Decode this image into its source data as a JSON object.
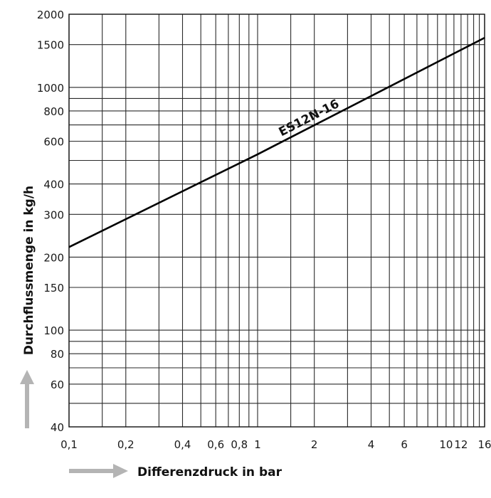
{
  "chart_data": {
    "type": "line",
    "x_scale": "log",
    "y_scale": "log",
    "xlabel": "Differenzdruck in bar",
    "ylabel": "Durchflussmenge in kg/h",
    "xlim": [
      0.1,
      16
    ],
    "ylim": [
      40,
      2000
    ],
    "x_ticks": [
      {
        "value": 0.1,
        "label": "0,1"
      },
      {
        "value": 0.2,
        "label": "0,2"
      },
      {
        "value": 0.4,
        "label": "0,4"
      },
      {
        "value": 0.6,
        "label": "0,6"
      },
      {
        "value": 0.8,
        "label": "0,8"
      },
      {
        "value": 1,
        "label": "1"
      },
      {
        "value": 2,
        "label": "2"
      },
      {
        "value": 4,
        "label": "4"
      },
      {
        "value": 6,
        "label": "6"
      },
      {
        "value": 10,
        "label": "10"
      },
      {
        "value": 12,
        "label": "12"
      },
      {
        "value": 16,
        "label": "16"
      }
    ],
    "y_ticks": [
      {
        "value": 40,
        "label": "40"
      },
      {
        "value": 60,
        "label": "60"
      },
      {
        "value": 80,
        "label": "80"
      },
      {
        "value": 100,
        "label": "100"
      },
      {
        "value": 150,
        "label": "150"
      },
      {
        "value": 200,
        "label": "200"
      },
      {
        "value": 300,
        "label": "300"
      },
      {
        "value": 400,
        "label": "400"
      },
      {
        "value": 600,
        "label": "600"
      },
      {
        "value": 800,
        "label": "800"
      },
      {
        "value": 1000,
        "label": "1000"
      },
      {
        "value": 1500,
        "label": "1500"
      },
      {
        "value": 2000,
        "label": "2000"
      }
    ],
    "x_grid": [
      0.1,
      0.15,
      0.2,
      0.3,
      0.4,
      0.5,
      0.6,
      0.7,
      0.8,
      0.9,
      1,
      1.5,
      2,
      3,
      4,
      5,
      6,
      7,
      8,
      9,
      10,
      11,
      12,
      13,
      14,
      15,
      16
    ],
    "y_grid": [
      40,
      50,
      60,
      70,
      80,
      90,
      100,
      150,
      200,
      300,
      400,
      500,
      600,
      700,
      800,
      900,
      1000,
      1500,
      2000
    ],
    "grid": true,
    "series": [
      {
        "name": "ES12N-16",
        "color": "#000000",
        "points": [
          {
            "x": 0.1,
            "y": 220
          },
          {
            "x": 1,
            "y": 530
          },
          {
            "x": 16,
            "y": 1600
          }
        ]
      }
    ]
  },
  "decorations": {
    "arrow_color": "#b4b4b4",
    "grid_color": "#2a2a2a"
  }
}
